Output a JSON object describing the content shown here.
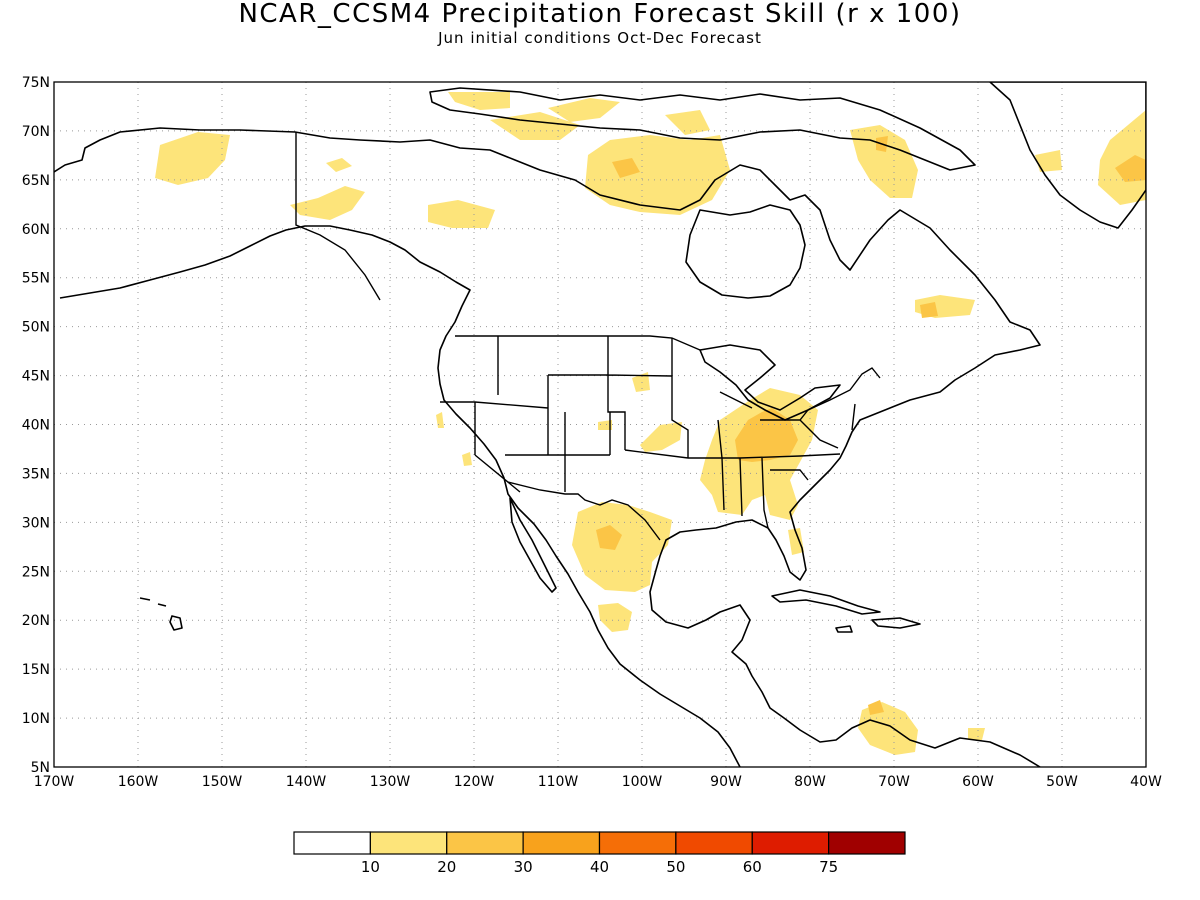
{
  "title": "NCAR_CCSM4 Precipitation Forecast Skill (r x 100)",
  "subtitle": "Jun initial conditions  Oct-Dec Forecast",
  "map": {
    "lon_range": [
      -170,
      -40
    ],
    "lat_range": [
      5,
      75
    ],
    "lat_ticks": [
      "75N",
      "70N",
      "65N",
      "60N",
      "55N",
      "50N",
      "45N",
      "40N",
      "35N",
      "30N",
      "25N",
      "20N",
      "15N",
      "10N",
      "5N"
    ],
    "lon_ticks": [
      "170W",
      "160W",
      "150W",
      "140W",
      "130W",
      "120W",
      "110W",
      "100W",
      "90W",
      "80W",
      "70W",
      "60W",
      "50W",
      "40W"
    ],
    "grid": "dotted"
  },
  "colorbar": {
    "labels": [
      "10",
      "20",
      "30",
      "40",
      "50",
      "60",
      "75"
    ],
    "colors": [
      "#ffffff",
      "#fde47a",
      "#fbc546",
      "#f8a21c",
      "#f56e07",
      "#f04a00",
      "#de1c00",
      "#a00000"
    ]
  },
  "skill_regions": [
    {
      "name": "alaska-west",
      "level": 1,
      "lon": -152,
      "lat": 66.5
    },
    {
      "name": "alaska-south",
      "level": 1,
      "lon": -139,
      "lat": 61.5
    },
    {
      "name": "yukon",
      "level": 1,
      "lon": -125,
      "lat": 61.5
    },
    {
      "name": "arctic-islands",
      "level": 1,
      "lon": -95,
      "lat": 70
    },
    {
      "name": "hudson-west",
      "level": 1,
      "lon": -98,
      "lat": 64.5
    },
    {
      "name": "baffin",
      "level": 1,
      "lon": -68,
      "lat": 67
    },
    {
      "name": "greenland-east",
      "level": 2,
      "lon": -41,
      "lat": 66
    },
    {
      "name": "labrador",
      "level": 2,
      "lon": -65,
      "lat": 51.5
    },
    {
      "name": "ohio-valley",
      "level": 2,
      "lon": -85,
      "lat": 39
    },
    {
      "name": "southeast",
      "level": 1,
      "lon": -86,
      "lat": 34
    },
    {
      "name": "texas",
      "level": 2,
      "lon": -103,
      "lat": 29
    },
    {
      "name": "mexico",
      "level": 1,
      "lon": -102,
      "lat": 25
    },
    {
      "name": "venezuela",
      "level": 1,
      "lon": -70,
      "lat": 7
    }
  ]
}
